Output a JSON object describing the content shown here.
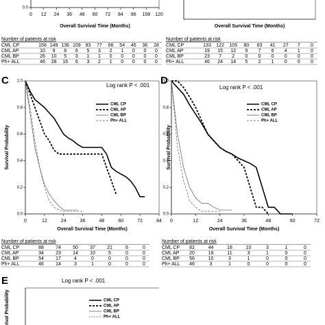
{
  "chart_data": [
    {
      "type": "line",
      "xlabel": "Overall Survival Time (Months)",
      "xlim": [
        0,
        120
      ],
      "xticks": [
        0,
        12,
        24,
        36,
        48,
        60,
        72,
        84,
        96,
        108,
        120
      ],
      "ylim": [
        0,
        1
      ],
      "yticks": [
        {
          "value": 0,
          "label": "0.0"
        }
      ],
      "risk_table": {
        "title": "Number of patients at risk",
        "rows": [
          {
            "name": "CML CP",
            "values": [
              156,
              149,
              136,
              109,
              93,
              77,
              66,
              54,
              45,
              36,
              28
            ]
          },
          {
            "name": "CML AP",
            "values": [
              10,
              9,
              8,
              6,
              5,
              3,
              2,
              1,
              0,
              0,
              0
            ]
          },
          {
            "name": "CML BP",
            "values": [
              26,
              10,
              5,
              3,
              1,
              1,
              0,
              0,
              0,
              0,
              0
            ]
          },
          {
            "name": "Ph+ ALL",
            "values": [
              46,
              28,
              16,
              6,
              3,
              2,
              1,
              0,
              0,
              0,
              0
            ]
          }
        ]
      }
    },
    {
      "type": "line",
      "xlabel": "Overall Survival Time (Months)",
      "risk_table": {
        "title": "Number of patients at risk",
        "rows": [
          {
            "name": "CML CP",
            "values": [
              133,
              122,
              105,
              80,
              63,
              41,
              27,
              7,
              0
            ]
          },
          {
            "name": "CML AP",
            "values": [
              19,
              15,
              12,
              9,
              7,
              6,
              4,
              1,
              0
            ]
          },
          {
            "name": "CML BP",
            "values": [
              23,
              7,
              2,
              0,
              0,
              0,
              0,
              0,
              0
            ]
          },
          {
            "name": "Ph+ ALL",
            "values": [
              46,
              24,
              14,
              5,
              2,
              1,
              0,
              0,
              0
            ]
          }
        ]
      }
    },
    {
      "type": "line",
      "panel": "C",
      "annotation": "Log rank P < .001",
      "xlabel": "Overall Survival Time (Months)",
      "ylabel": "Survival Probability",
      "xlim": [
        0,
        84
      ],
      "xticks": [
        0,
        12,
        24,
        36,
        48,
        60,
        72,
        84
      ],
      "ylim": [
        0,
        1
      ],
      "yticks": [
        {
          "value": 0,
          "label": "0.0"
        },
        {
          "value": 0.2,
          "label": "0.2"
        },
        {
          "value": 0.4,
          "label": "0.4"
        },
        {
          "value": 0.6,
          "label": "0.6"
        },
        {
          "value": 0.8,
          "label": "0.8"
        },
        {
          "value": 1,
          "label": "1.0"
        }
      ],
      "x": [
        0,
        3,
        6,
        9,
        12,
        15,
        18,
        21,
        24,
        27,
        30,
        33,
        36,
        39,
        42,
        45,
        48,
        51,
        54,
        57,
        60,
        63,
        66,
        69,
        72,
        75
      ],
      "series": [
        {
          "name": "CML CP",
          "color": "#000000",
          "dash": "solid",
          "width": 1.6,
          "values": [
            1,
            0.92,
            0.86,
            0.83,
            0.8,
            0.76,
            0.72,
            0.66,
            0.6,
            0.57,
            0.55,
            0.52,
            0.5,
            0.5,
            0.5,
            0.5,
            0.5,
            0.45,
            0.35,
            0.32,
            0.3,
            0.28,
            0.25,
            0.2,
            0.13,
            0.13
          ]
        },
        {
          "name": "CML AP",
          "color": "#000000",
          "dash": "dashed",
          "width": 1.8,
          "values": [
            1,
            0.9,
            0.8,
            0.7,
            0.6,
            0.55,
            0.48,
            0.45,
            0.45,
            0.45,
            0.45,
            0.45,
            0.45,
            0.45,
            0.45,
            0.45,
            0.45,
            0.35,
            0.25,
            0.15,
            null,
            null,
            null,
            null,
            null,
            null
          ]
        },
        {
          "name": "CML BP",
          "color": "#555555",
          "dash": "solid",
          "width": 0.7,
          "values": [
            1,
            0.75,
            0.5,
            0.35,
            0.22,
            0.15,
            0.1,
            0.06,
            0.03,
            0.03,
            0.03,
            0.03,
            null,
            null,
            null,
            null,
            null,
            null,
            null,
            null,
            null,
            null,
            null,
            null,
            null,
            null
          ]
        },
        {
          "name": "Ph+ ALL",
          "color": "#555555",
          "dash": "dashed",
          "width": 0.7,
          "values": [
            1,
            0.8,
            0.55,
            0.35,
            0.2,
            0.1,
            0.05,
            0.03,
            0.02,
            0.02,
            0.02,
            0.02,
            0.02,
            null,
            null,
            null,
            null,
            null,
            null,
            null,
            null,
            null,
            null,
            null,
            null,
            null
          ]
        }
      ],
      "risk_table": {
        "title": "Number of patients at risk",
        "rows": [
          {
            "name": "CML CP",
            "values": [
              88,
              74,
              50,
              37,
              21,
              6,
              0
            ]
          },
          {
            "name": "CML AP",
            "values": [
              34,
              23,
              14,
              10,
              5,
              0,
              0
            ]
          },
          {
            "name": "CML BP",
            "values": [
              54,
              17,
              4,
              0,
              0,
              0,
              0
            ]
          },
          {
            "name": "Ph+ ALL",
            "values": [
              46,
              14,
              3,
              1,
              0,
              0,
              0
            ]
          }
        ]
      }
    },
    {
      "type": "line",
      "panel": "D",
      "annotation": "Log rank P < .001",
      "xlabel": "Overall Survival Time (Months)",
      "ylabel": "Survival Probability",
      "xlim": [
        0,
        72
      ],
      "xticks": [
        0,
        12,
        24,
        36,
        48,
        60,
        72
      ],
      "ylim": [
        0,
        1
      ],
      "yticks": [
        {
          "value": 0,
          "label": "0.0"
        },
        {
          "value": 0.2,
          "label": "0.2"
        },
        {
          "value": 0.4,
          "label": "0.4"
        },
        {
          "value": 0.6,
          "label": "0.6"
        },
        {
          "value": 0.8,
          "label": "0.8"
        },
        {
          "value": 1,
          "label": "1.0"
        }
      ],
      "x": [
        0,
        3,
        6,
        9,
        12,
        15,
        18,
        21,
        24,
        27,
        30,
        33,
        36,
        39,
        42,
        45,
        48,
        51,
        54,
        57,
        60
      ],
      "series": [
        {
          "name": "CML CP",
          "color": "#000000",
          "dash": "solid",
          "width": 1.6,
          "values": [
            1,
            0.95,
            0.9,
            0.82,
            0.75,
            0.68,
            0.6,
            0.55,
            0.5,
            0.47,
            0.45,
            0.42,
            0.4,
            0.38,
            0.35,
            0.2,
            0.05,
            0.05,
            0,
            0,
            0
          ]
        },
        {
          "name": "CML AP",
          "color": "#000000",
          "dash": "dashed",
          "width": 1.8,
          "values": [
            1,
            1,
            0.95,
            0.88,
            0.8,
            0.7,
            0.6,
            0.55,
            0.5,
            0.47,
            0.45,
            0.4,
            0.35,
            0.2,
            0.05,
            0.05,
            0,
            null,
            null,
            null,
            null
          ]
        },
        {
          "name": "CML BP",
          "color": "#555555",
          "dash": "solid",
          "width": 0.7,
          "values": [
            1,
            0.6,
            0.35,
            0.2,
            0.12,
            0.08,
            0.08,
            0.05,
            0.03,
            0.03,
            0.03,
            null,
            null,
            null,
            null,
            null,
            null,
            null,
            null,
            null,
            null
          ]
        },
        {
          "name": "Ph+ ALL",
          "color": "#555555",
          "dash": "dashed",
          "width": 0.7,
          "values": [
            1,
            0.5,
            0.25,
            0.1,
            0.05,
            0.02,
            0.02,
            0.02,
            0.02,
            null,
            null,
            null,
            null,
            null,
            null,
            null,
            null,
            null,
            null,
            null,
            null
          ]
        }
      ],
      "risk_table": {
        "title": "Number of patients at risk",
        "rows": [
          {
            "name": "CML CP",
            "values": [
              82,
              44,
              18,
              10,
              3,
              1,
              0
            ]
          },
          {
            "name": "CML AP",
            "values": [
              20,
              16,
              11,
              3,
              1,
              0,
              0
            ]
          },
          {
            "name": "CML BP",
            "values": [
              56,
              10,
              3,
              1,
              0,
              0,
              0
            ]
          },
          {
            "name": "Ph+ ALL",
            "values": [
              46,
              3,
              1,
              0,
              0,
              0,
              0
            ]
          }
        ]
      }
    },
    {
      "type": "line",
      "panel": "E",
      "annotation": "Log rank P < .001",
      "ylabel": "Survival Probability",
      "legend": [
        "CML CP",
        "CML AP",
        "CML BP",
        "Ph+ ALL"
      ]
    }
  ]
}
